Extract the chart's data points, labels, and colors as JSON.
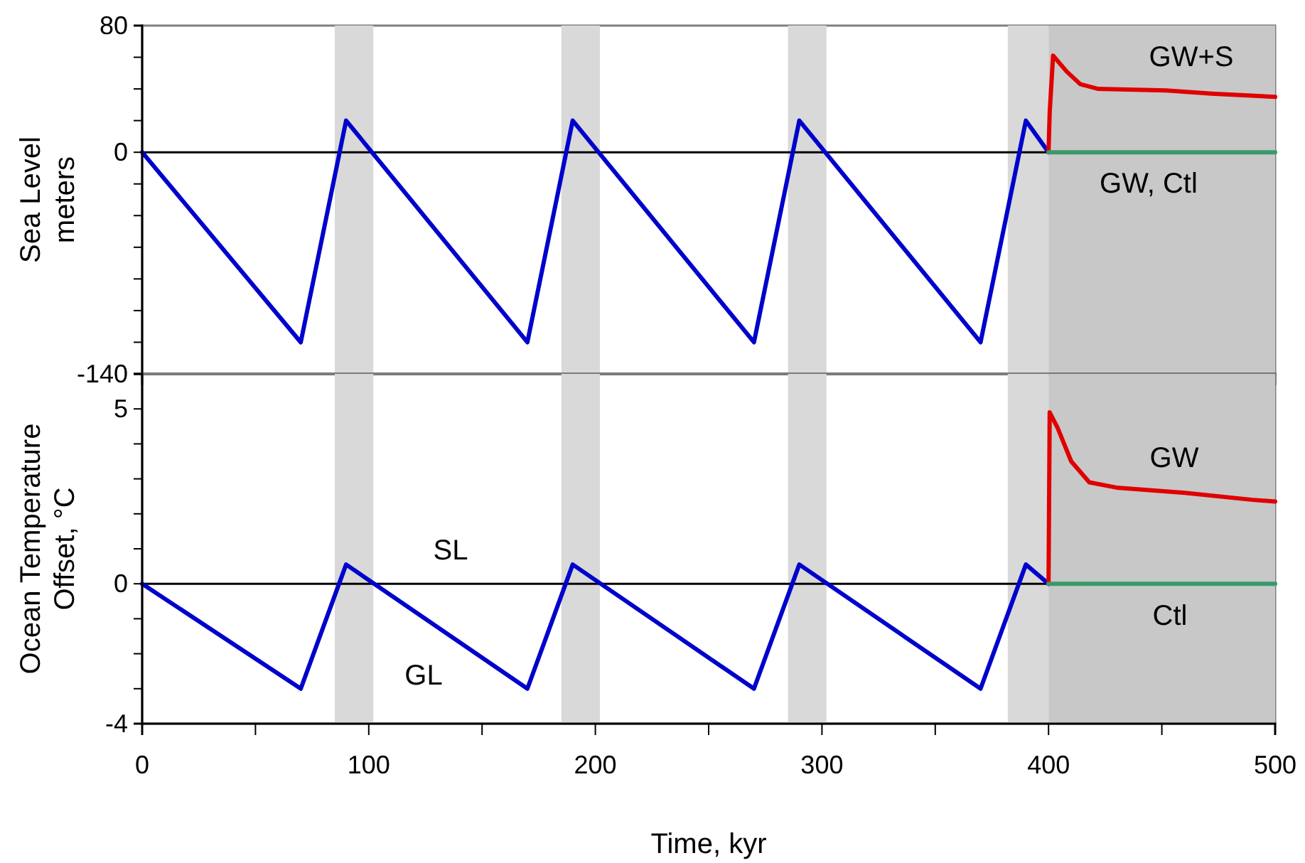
{
  "chart_data": [
    {
      "type": "line",
      "ylabel": "Sea Level\nmeters",
      "xlim": [
        0,
        500
      ],
      "xticks": [
        0,
        100,
        200,
        300,
        400,
        500
      ],
      "ylim": [
        -140,
        80
      ],
      "yticks": [
        80,
        {
          "value": 60,
          "label": null
        },
        {
          "value": 40,
          "label": null
        },
        {
          "value": 20,
          "label": null
        },
        0,
        {
          "value": -20,
          "label": null
        },
        {
          "value": -40,
          "label": null
        },
        {
          "value": -60,
          "label": null
        },
        {
          "value": -80,
          "label": null
        },
        {
          "value": -100,
          "label": null
        },
        {
          "value": -120,
          "label": null
        },
        -140
      ],
      "tick_labels": "y",
      "grid": false,
      "bands": [
        {
          "axis": "x",
          "from": 85,
          "to": 102,
          "color": "#d9d9d9"
        },
        {
          "axis": "x",
          "from": 185,
          "to": 202,
          "color": "#d9d9d9"
        },
        {
          "axis": "x",
          "from": 285,
          "to": 302,
          "color": "#d9d9d9"
        },
        {
          "axis": "x",
          "from": 382,
          "to": 400,
          "color": "#d9d9d9"
        },
        {
          "axis": "x",
          "from": 400,
          "to": 500,
          "color": "#c8c8c8"
        }
      ],
      "ref_lines": [
        {
          "axis": "y",
          "value": 0,
          "color": "#000000"
        }
      ],
      "series": [
        {
          "color": "#0000cc",
          "x": [
            0,
            70,
            90,
            170,
            190,
            270,
            290,
            370,
            390,
            400
          ],
          "values": [
            0,
            -120,
            20,
            -120,
            20,
            -120,
            20,
            -120,
            20,
            0
          ]
        },
        {
          "color": "#e00000",
          "x": [
            400,
            400.5,
            402,
            408,
            414,
            422,
            452,
            472,
            500
          ],
          "values": [
            0,
            25,
            61,
            51,
            43,
            40,
            39,
            37,
            35
          ]
        },
        {
          "color": "#3a9a6a",
          "x": [
            400,
            500
          ],
          "values": [
            0,
            0
          ]
        }
      ],
      "annotations": [
        "GW+S",
        "GW, Ctl"
      ]
    },
    {
      "type": "line",
      "ylabel": "Ocean Temperature\nOffset, °C",
      "xlabel": "Time, kyr",
      "xlim": [
        0,
        500
      ],
      "xticks": [
        0,
        {
          "value": 50,
          "label": null
        },
        100,
        {
          "value": 150,
          "label": null
        },
        200,
        {
          "value": 250,
          "label": null
        },
        300,
        {
          "value": 350,
          "label": null
        },
        400,
        {
          "value": 450,
          "label": null
        },
        500
      ],
      "ylim": [
        -4,
        6
      ],
      "yticks": [
        5,
        {
          "value": 4,
          "label": null
        },
        {
          "value": 3,
          "label": null
        },
        {
          "value": 2,
          "label": null
        },
        {
          "value": 1,
          "label": null
        },
        0,
        {
          "value": -1,
          "label": null
        },
        {
          "value": -2,
          "label": null
        },
        {
          "value": -3,
          "label": null
        },
        -4
      ],
      "grid": false,
      "bands": [
        {
          "axis": "x",
          "from": 85,
          "to": 102,
          "color": "#d9d9d9"
        },
        {
          "axis": "x",
          "from": 185,
          "to": 202,
          "color": "#d9d9d9"
        },
        {
          "axis": "x",
          "from": 285,
          "to": 302,
          "color": "#d9d9d9"
        },
        {
          "axis": "x",
          "from": 382,
          "to": 400,
          "color": "#d9d9d9"
        },
        {
          "axis": "x",
          "from": 400,
          "to": 500,
          "color": "#c8c8c8"
        }
      ],
      "ref_lines": [
        {
          "axis": "y",
          "value": 0,
          "color": "#000000"
        }
      ],
      "series": [
        {
          "color": "#0000cc",
          "x": [
            0,
            70,
            90,
            170,
            190,
            270,
            290,
            370,
            390,
            400
          ],
          "values": [
            0,
            -3,
            0.55,
            -3,
            0.55,
            -3,
            0.55,
            -3,
            0.55,
            0
          ]
        },
        {
          "color": "#e00000",
          "x": [
            400,
            400.5,
            404,
            410,
            418,
            430,
            460,
            490,
            500
          ],
          "values": [
            0,
            4.9,
            4.46,
            3.5,
            2.9,
            2.75,
            2.6,
            2.4,
            2.35
          ]
        },
        {
          "color": "#3a9a6a",
          "x": [
            400,
            500
          ],
          "values": [
            0,
            0
          ]
        }
      ],
      "annotations": [
        "GW",
        "Ctl",
        "SL",
        "GL"
      ]
    }
  ]
}
